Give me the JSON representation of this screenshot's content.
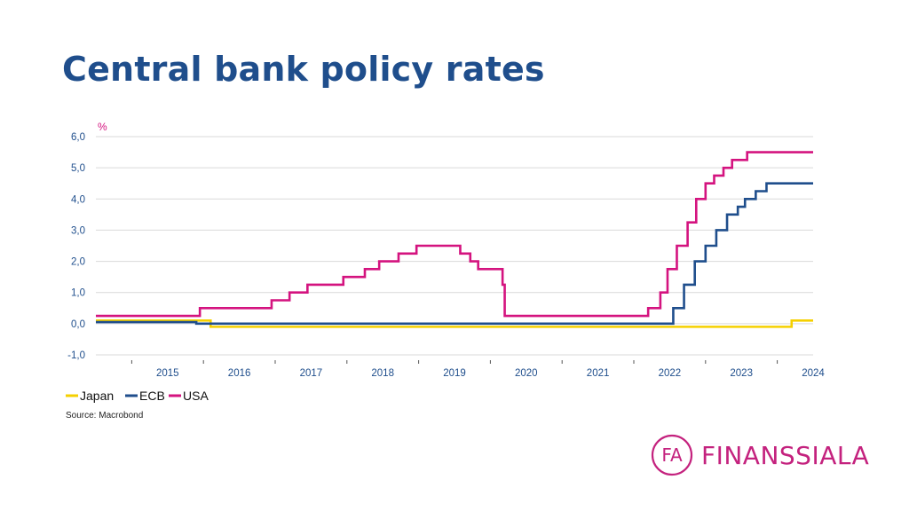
{
  "header": {
    "title": "Central bank policy rates"
  },
  "footer": {
    "source": "Source: Macrobond"
  },
  "brand": {
    "name": "FINANSSIALA",
    "mark": "FA",
    "color": "#c4227e"
  },
  "chart_data": {
    "type": "line",
    "title": "Central bank policy rates",
    "ylabel": "%",
    "ylim": [
      -1,
      6
    ],
    "yticks": [
      -1,
      0,
      1,
      2,
      3,
      4,
      5,
      6
    ],
    "ytick_labels": [
      "-1,0",
      "0,0",
      "1,0",
      "2,0",
      "3,0",
      "4,0",
      "5,0",
      "6,0"
    ],
    "xlim": [
      2014.5,
      2024.5
    ],
    "xtick_labels": [
      "2015",
      "2016",
      "2017",
      "2018",
      "2019",
      "2020",
      "2021",
      "2022",
      "2023",
      "2024"
    ],
    "xtick_positions": [
      2015,
      2016,
      2017,
      2018,
      2019,
      2020,
      2021,
      2022,
      2023,
      2024
    ],
    "grid": true,
    "legend": "bottom-left",
    "series": [
      {
        "name": "Japan",
        "color": "#f5d000",
        "step": true,
        "points": [
          [
            2014.5,
            0.1
          ],
          [
            2016.1,
            -0.1
          ],
          [
            2024.2,
            0.1
          ],
          [
            2024.5,
            0.1
          ]
        ]
      },
      {
        "name": "ECB",
        "color": "#1f4e8c",
        "step": true,
        "points": [
          [
            2014.5,
            0.05
          ],
          [
            2015.9,
            0.0
          ],
          [
            2022.55,
            0.5
          ],
          [
            2022.7,
            1.25
          ],
          [
            2022.85,
            2.0
          ],
          [
            2023.0,
            2.5
          ],
          [
            2023.15,
            3.0
          ],
          [
            2023.3,
            3.5
          ],
          [
            2023.45,
            3.75
          ],
          [
            2023.55,
            4.0
          ],
          [
            2023.7,
            4.25
          ],
          [
            2023.85,
            4.5
          ],
          [
            2024.5,
            4.5
          ]
        ]
      },
      {
        "name": "USA",
        "color": "#d4137f",
        "step": true,
        "points": [
          [
            2014.5,
            0.25
          ],
          [
            2015.95,
            0.5
          ],
          [
            2016.95,
            0.75
          ],
          [
            2017.2,
            1.0
          ],
          [
            2017.45,
            1.25
          ],
          [
            2017.95,
            1.5
          ],
          [
            2018.25,
            1.75
          ],
          [
            2018.45,
            2.0
          ],
          [
            2018.72,
            2.25
          ],
          [
            2018.97,
            2.5
          ],
          [
            2019.58,
            2.25
          ],
          [
            2019.72,
            2.0
          ],
          [
            2019.83,
            1.75
          ],
          [
            2020.17,
            1.25
          ],
          [
            2020.2,
            0.25
          ],
          [
            2022.2,
            0.5
          ],
          [
            2022.37,
            1.0
          ],
          [
            2022.47,
            1.75
          ],
          [
            2022.6,
            2.5
          ],
          [
            2022.75,
            3.25
          ],
          [
            2022.87,
            4.0
          ],
          [
            2023.0,
            4.5
          ],
          [
            2023.12,
            4.75
          ],
          [
            2023.25,
            5.0
          ],
          [
            2023.37,
            5.25
          ],
          [
            2023.58,
            5.5
          ],
          [
            2024.5,
            5.5
          ]
        ]
      }
    ]
  }
}
